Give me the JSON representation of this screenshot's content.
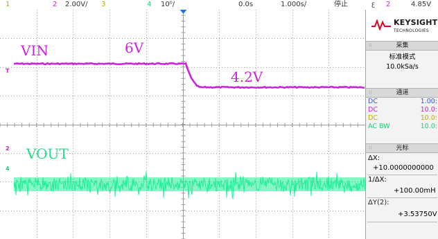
{
  "topbar": {
    "ch1_num": "1",
    "ch2_num": "2",
    "ch2_scale": "2.00V/",
    "ch3_num": "3",
    "ch4_num": "4",
    "ch4_scale": "10⁰/",
    "time_offset": "0.0s",
    "time_scale": "1.000s/",
    "run_state": "停止",
    "trigger_icon": "trigger-edge-icon",
    "trigger_source": "2",
    "trigger_level": "4.85V"
  },
  "waveform": {
    "vin_label": "VIN",
    "vin_high_label": "6V",
    "vin_low_label": "4.2V",
    "vout_label": "VOUT",
    "trigger_marker": "T",
    "ch2_marker": "2",
    "ch4_marker": "4",
    "colors": {
      "ch2": "#cc22dd",
      "ch4": "#22ee99",
      "grid": "#9a9a9a"
    }
  },
  "panel": {
    "logo_text": "KEYSIGHT",
    "logo_sub": "TECHNOLOGIES",
    "acquire_title": "采集",
    "acquire_mode": "标准模式",
    "acquire_rate": "10.0kSa/s",
    "channels_title": "通道",
    "channels": [
      {
        "coupling": "DC",
        "value": "1.00:",
        "color": "#3355cc"
      },
      {
        "coupling": "DC",
        "value": "10.0:",
        "color": "#cc22cc"
      },
      {
        "coupling": "DC",
        "value": "10.0:",
        "color": "#c8a800"
      },
      {
        "coupling": "AC BW",
        "value": "10.0:",
        "color": "#22cc77"
      }
    ],
    "cursor_title": "光标",
    "dx_label": "ΔX:",
    "dx_value": "+10.0000000000",
    "inv_dx_label": "1/ΔX:",
    "inv_dx_value": "+100.00mH",
    "dy_label": "ΔY(2):",
    "dy_value": "+3.53750V"
  }
}
